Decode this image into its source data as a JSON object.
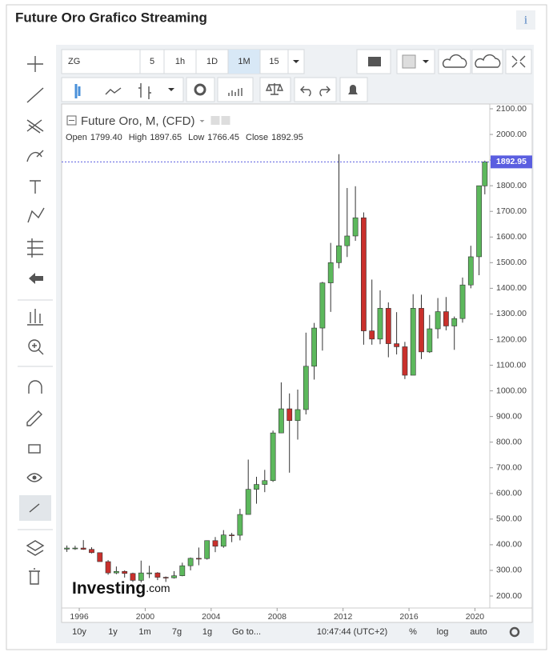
{
  "header": {
    "title": "Future Oro Grafico Streaming",
    "info": "i"
  },
  "toolbar": {
    "symbol": "ZG",
    "intervals": [
      "5",
      "1h",
      "1D",
      "1M",
      "15"
    ],
    "active_interval": "1M"
  },
  "chart_data": {
    "type": "candlestick",
    "title": "Future Oro, M, (CFD)",
    "legend": [
      {
        "label": "Open",
        "value": "1799.40"
      },
      {
        "label": "High",
        "value": "1897.65"
      },
      {
        "label": "Low",
        "value": "1766.45"
      },
      {
        "label": "Close",
        "value": "1892.95"
      }
    ],
    "x": [
      1995.25,
      1995.75,
      1996.25,
      1996.75,
      1997.25,
      1997.75,
      1998.25,
      1998.75,
      1999.25,
      1999.75,
      2000.25,
      2000.75,
      2001.25,
      2001.75,
      2002.25,
      2002.75,
      2003.25,
      2003.75,
      2004.25,
      2004.75,
      2005.25,
      2005.75,
      2006.25,
      2006.75,
      2007.25,
      2007.75,
      2008.25,
      2008.75,
      2009.25,
      2009.75,
      2010.25,
      2010.75,
      2011.25,
      2011.75,
      2012.25,
      2012.75,
      2013.25,
      2013.75,
      2014.25,
      2014.75,
      2015.25,
      2015.75,
      2016.25,
      2016.75,
      2017.25,
      2017.75,
      2018.25,
      2018.75,
      2019.25,
      2019.75,
      2020.25,
      2020.6
    ],
    "open": [
      383,
      387,
      387,
      382,
      369,
      334,
      290,
      296,
      288,
      261,
      290,
      290,
      273,
      271,
      279,
      318,
      347,
      346,
      416,
      394,
      438,
      437,
      518,
      616,
      635,
      650,
      836,
      930,
      884,
      927,
      1096,
      1245,
      1421,
      1500,
      1566,
      1604,
      1675,
      1234,
      1202,
      1322,
      1184,
      1172,
      1061,
      1322,
      1152,
      1242,
      1309,
      1253,
      1282,
      1413,
      1523,
      1799.4
    ],
    "high": [
      397,
      396,
      418,
      390,
      370,
      340,
      315,
      300,
      291,
      338,
      318,
      293,
      276,
      297,
      330,
      350,
      389,
      417,
      430,
      457,
      446,
      540,
      732,
      665,
      692,
      845,
      1033,
      990,
      1005,
      1227,
      1265,
      1425,
      1577,
      1923,
      1791,
      1798,
      1696,
      1434,
      1392,
      1345,
      1307,
      1191,
      1377,
      1375,
      1296,
      1362,
      1366,
      1290,
      1442,
      1566,
      1800,
      1897.65
    ],
    "low": [
      372,
      380,
      380,
      366,
      335,
      283,
      285,
      272,
      255,
      253,
      270,
      262,
      255,
      268,
      277,
      300,
      320,
      342,
      371,
      388,
      410,
      417,
      518,
      560,
      605,
      645,
      835,
      681,
      810,
      908,
      1044,
      1157,
      1308,
      1478,
      1522,
      1585,
      1180,
      1180,
      1182,
      1131,
      1142,
      1046,
      1061,
      1124,
      1148,
      1204,
      1236,
      1160,
      1266,
      1400,
      1451,
      1766.45
    ],
    "close": [
      387,
      387,
      382,
      369,
      334,
      290,
      296,
      288,
      261,
      290,
      290,
      273,
      271,
      279,
      318,
      347,
      346,
      416,
      394,
      438,
      437,
      518,
      616,
      635,
      650,
      836,
      930,
      884,
      927,
      1096,
      1245,
      1421,
      1500,
      1566,
      1604,
      1675,
      1234,
      1202,
      1322,
      1184,
      1172,
      1061,
      1322,
      1152,
      1242,
      1309,
      1253,
      1282,
      1413,
      1523,
      1800,
      1892.95
    ],
    "up_color": "#5cb85c",
    "down_color": "#c9302c",
    "xlim": [
      1994.93,
      2020.9
    ],
    "xticks": [
      1996,
      2000,
      2004,
      2008,
      2012,
      2016,
      2020
    ],
    "ylim": [
      200,
      2100
    ],
    "yticks": [
      {
        "value": 200,
        "label": "200.00"
      },
      {
        "value": 300,
        "label": "300.00"
      },
      {
        "value": 400,
        "label": "400.00"
      },
      {
        "value": 500,
        "label": "500.00"
      },
      {
        "value": 600,
        "label": "600.00"
      },
      {
        "value": 700,
        "label": "700.00"
      },
      {
        "value": 800,
        "label": "800.00"
      },
      {
        "value": 900,
        "label": "900.00"
      },
      {
        "value": 1000,
        "label": "1000.00"
      },
      {
        "value": 1100,
        "label": "1100.00"
      },
      {
        "value": 1200,
        "label": "1200.00"
      },
      {
        "value": 1300,
        "label": "1300.00"
      },
      {
        "value": 1400,
        "label": "1400.00"
      },
      {
        "value": 1500,
        "label": "1500.00"
      },
      {
        "value": 1600,
        "label": "1600.00"
      },
      {
        "value": 1700,
        "label": "1700.00"
      },
      {
        "value": 1800,
        "label": "1800.00"
      },
      {
        "value": 1900,
        "label": "1900.00"
      },
      {
        "value": 2000,
        "label": "2000.00"
      },
      {
        "value": 2100,
        "label": "2100.00"
      }
    ],
    "last_price": 1892.95,
    "last_price_color": "#5a5ee0",
    "watermark": [
      "Investing",
      ".com"
    ]
  },
  "footer": {
    "ranges": [
      "10y",
      "1y",
      "1m",
      "7g",
      "1g"
    ],
    "goto": "Go to...",
    "clock": "10:47:44 (UTC+2)",
    "options": [
      "%",
      "log",
      "auto"
    ],
    "active_option": "auto"
  }
}
